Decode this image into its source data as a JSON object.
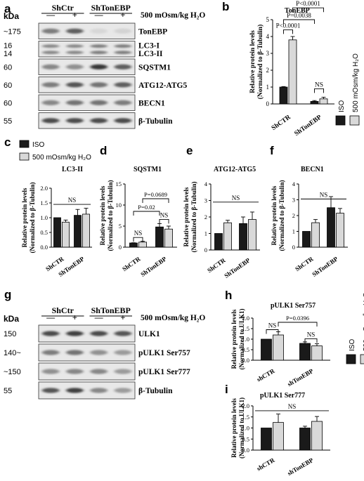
{
  "panels": [
    {
      "id": "a",
      "letter": "a"
    },
    {
      "id": "b",
      "letter": "b"
    },
    {
      "id": "c",
      "letter": "c"
    },
    {
      "id": "d",
      "letter": "d"
    },
    {
      "id": "e",
      "letter": "e"
    },
    {
      "id": "f",
      "letter": "f"
    },
    {
      "id": "g",
      "letter": "g"
    },
    {
      "id": "h",
      "letter": "h"
    },
    {
      "id": "i",
      "letter": "i"
    }
  ],
  "legend": {
    "iso": "ISO",
    "hyper": "500 mOsm/kg H₂O",
    "colors": {
      "iso": "#1a1a1a",
      "hyper": "#d9d9d9"
    }
  },
  "blots": [
    {
      "id": "a",
      "kda_label": "kDa",
      "groups": [
        "ShCtr",
        "ShTonEBP"
      ],
      "lane_signs": [
        "—",
        "+",
        "—",
        "+"
      ],
      "treatment_label": "500 mOsm/kg H₂O",
      "rows": [
        {
          "marker": "~175",
          "labels": [
            "TonEBP"
          ],
          "intensity": [
            0.55,
            0.7,
            0.1,
            0.12
          ],
          "bands": 1
        },
        {
          "marker": "16",
          "marker2": "14",
          "labels": [
            "LC3-I",
            "LC3-II"
          ],
          "intensity": [
            0.5,
            0.5,
            0.55,
            0.55
          ],
          "bands": 2
        },
        {
          "marker": "60",
          "labels": [
            "SQSTM1"
          ],
          "intensity": [
            0.5,
            0.45,
            0.9,
            0.7
          ],
          "bands": 1
        },
        {
          "marker": "60",
          "labels": [
            "ATG12-ATG5"
          ],
          "intensity": [
            0.55,
            0.75,
            0.6,
            0.7
          ],
          "bands": 1
        },
        {
          "marker": "60",
          "labels": [
            "BECN1"
          ],
          "intensity": [
            0.5,
            0.6,
            0.6,
            0.55
          ],
          "bands": 1
        },
        {
          "marker": "55",
          "labels": [
            "β-Tubulin"
          ],
          "intensity": [
            0.8,
            0.8,
            0.8,
            0.8
          ],
          "bands": 1
        }
      ]
    },
    {
      "id": "g",
      "kda_label": "kDa",
      "groups": [
        "ShCtr",
        "ShTonEBP"
      ],
      "lane_signs": [
        "—",
        "+",
        "—",
        "+"
      ],
      "treatment_label": "500 mOsm/kg H₂O",
      "rows": [
        {
          "marker": "150",
          "labels": [
            "ULK1"
          ],
          "intensity": [
            0.8,
            0.85,
            0.8,
            0.75
          ],
          "bands": 1
        },
        {
          "marker": "140~",
          "labels": [
            "pULK1 Ser757"
          ],
          "intensity": [
            0.55,
            0.6,
            0.45,
            0.4
          ],
          "bands": 1
        },
        {
          "marker": "~150",
          "labels": [
            "pULK1 Ser777"
          ],
          "intensity": [
            0.45,
            0.5,
            0.5,
            0.4
          ],
          "bands": 1
        },
        {
          "marker": "55",
          "labels": [
            "β-Tubulin"
          ],
          "intensity": [
            0.75,
            0.85,
            0.5,
            0.4
          ],
          "bands": 1
        }
      ]
    }
  ],
  "chart_data": [
    {
      "id": "b",
      "type": "bar",
      "title": "TonEBP",
      "ylabel": [
        "Relative protein levels",
        "(Normalized to β-Tubulin)"
      ],
      "categories": [
        "ShCTR",
        "ShTonEBP"
      ],
      "series": [
        {
          "name": "ISO",
          "values": [
            1.0,
            0.15
          ],
          "errors": [
            0.03,
            0.05
          ]
        },
        {
          "name": "500 mOsm/kg H₂O",
          "values": [
            3.8,
            0.3
          ],
          "errors": [
            0.2,
            0.1
          ]
        }
      ],
      "ylim": [
        0,
        5
      ],
      "yticks": [
        0,
        1,
        2,
        3,
        4,
        5
      ],
      "grid": false,
      "annotations": [
        {
          "text": "P<0.0001",
          "from": [
            0,
            0
          ],
          "to": [
            0,
            1
          ],
          "y": 4.4
        },
        {
          "text": "P=0.0038",
          "from": [
            0,
            0
          ],
          "to": [
            1,
            0
          ],
          "y": 5.0
        },
        {
          "text": "P<0.0001",
          "from": [
            0,
            1
          ],
          "to": [
            1,
            1
          ],
          "y": 5.7
        },
        {
          "text": "NS",
          "from": [
            1,
            0
          ],
          "to": [
            1,
            1
          ],
          "y": 0.9
        }
      ]
    },
    {
      "id": "c",
      "type": "bar",
      "title": "LC3-II",
      "ylabel": [
        "Relative protein levels",
        "(Normalized to β-Tubulin)"
      ],
      "categories": [
        "ShCTR",
        "ShTonEBP"
      ],
      "series": [
        {
          "name": "ISO",
          "values": [
            1.0,
            1.08
          ],
          "errors": [
            0.0,
            0.2
          ]
        },
        {
          "name": "500 mOsm/kg H₂O",
          "values": [
            0.85,
            1.12
          ],
          "errors": [
            0.07,
            0.2
          ]
        }
      ],
      "ylim": [
        0,
        2.0
      ],
      "yticks": [
        0.0,
        0.5,
        1.0,
        1.5,
        2.0
      ],
      "grid": false,
      "annotations": [
        {
          "text": "NS",
          "from": [
            0,
            0
          ],
          "to": [
            1,
            1
          ],
          "y": 1.45
        }
      ]
    },
    {
      "id": "d",
      "type": "bar",
      "title": "SQSTM1",
      "ylabel": [
        "Relative protein levels",
        "(Normalized to β-Tubulin)"
      ],
      "categories": [
        "ShCTR",
        "ShTonEBP"
      ],
      "series": [
        {
          "name": "ISO",
          "values": [
            1.0,
            4.8
          ],
          "errors": [
            0.05,
            0.8
          ]
        },
        {
          "name": "500 mOsm/kg H₂O",
          "values": [
            1.2,
            4.3
          ],
          "errors": [
            0.2,
            0.7
          ]
        }
      ],
      "ylim": [
        0,
        15
      ],
      "yticks": [
        0,
        5,
        10,
        15
      ],
      "grid": false,
      "annotations": [
        {
          "text": "NS",
          "from": [
            0,
            0
          ],
          "to": [
            0,
            1
          ],
          "y": 2.3
        },
        {
          "text": "NS",
          "from": [
            1,
            0
          ],
          "to": [
            1,
            1
          ],
          "y": 6.6
        },
        {
          "text": "P=0.02",
          "from": [
            0,
            0
          ],
          "to": [
            1,
            0
          ],
          "y": 8.5
        },
        {
          "text": "P=0.0689",
          "from": [
            0,
            1
          ],
          "to": [
            1,
            1
          ],
          "y": 11.5
        }
      ]
    },
    {
      "id": "e",
      "type": "bar",
      "title": "ATG12-ATG5",
      "ylabel": [
        "Relative protein levels",
        "(Normalized to β-Tubulin)"
      ],
      "categories": [
        "ShCTR",
        "ShTonEBP"
      ],
      "series": [
        {
          "name": "ISO",
          "values": [
            1.0,
            1.6
          ],
          "errors": [
            0.0,
            0.4
          ]
        },
        {
          "name": "500 mOsm/kg H₂O",
          "values": [
            1.65,
            1.85
          ],
          "errors": [
            0.15,
            0.45
          ]
        }
      ],
      "ylim": [
        0,
        4
      ],
      "yticks": [
        0,
        1,
        2,
        3,
        4
      ],
      "grid": false,
      "annotations": [
        {
          "text": "NS",
          "from": [
            0,
            0
          ],
          "to": [
            1,
            1
          ],
          "y": 2.9
        }
      ]
    },
    {
      "id": "f",
      "type": "bar",
      "title": "BECN1",
      "ylabel": [
        "Relative protein levels",
        "(Normalized to β-Tubulin)"
      ],
      "categories": [
        "ShCTR",
        "ShTonEBP"
      ],
      "series": [
        {
          "name": "ISO",
          "values": [
            1.0,
            2.5
          ],
          "errors": [
            0.0,
            0.7
          ]
        },
        {
          "name": "500 mOsm/kg H₂O",
          "values": [
            1.55,
            2.15
          ],
          "errors": [
            0.2,
            0.3
          ]
        }
      ],
      "ylim": [
        0,
        4
      ],
      "yticks": [
        0,
        1,
        2,
        3,
        4
      ],
      "grid": false,
      "annotations": [
        {
          "text": "NS",
          "from": [
            0,
            0
          ],
          "to": [
            1,
            1
          ],
          "y": 3.05
        }
      ]
    },
    {
      "id": "h",
      "type": "bar",
      "title": "pULK1 Ser757",
      "ylabel": [
        "Relative protein levels",
        "(Normalized to ULK1)"
      ],
      "categories": [
        "shCTR",
        "shTonEBP"
      ],
      "series": [
        {
          "name": "ISO",
          "values": [
            1.0,
            0.8
          ],
          "errors": [
            0.0,
            0.07
          ]
        },
        {
          "name": "500 mOsm/kg H₂O",
          "values": [
            1.2,
            0.68
          ],
          "errors": [
            0.15,
            0.1
          ]
        }
      ],
      "ylim": [
        0,
        2.0
      ],
      "yticks": [
        0.0,
        0.5,
        1.0,
        1.5,
        2.0
      ],
      "grid": false,
      "annotations": [
        {
          "text": "NS",
          "from": [
            0,
            0
          ],
          "to": [
            0,
            1
          ],
          "y": 1.45
        },
        {
          "text": "NS",
          "from": [
            1,
            0
          ],
          "to": [
            1,
            1
          ],
          "y": 1.02
        },
        {
          "text": "P=0.0396",
          "from": [
            0,
            1
          ],
          "to": [
            1,
            1
          ],
          "y": 1.8
        }
      ]
    },
    {
      "id": "i",
      "type": "bar",
      "title": "pULK1 Ser777",
      "ylabel": [
        "Relative protein levels",
        "(Normalized to ULK1)"
      ],
      "categories": [
        "shCTR",
        "shTonEBP"
      ],
      "series": [
        {
          "name": "ISO",
          "values": [
            1.0,
            1.0
          ],
          "errors": [
            0.0,
            0.08
          ]
        },
        {
          "name": "500 mOsm/kg H₂O",
          "values": [
            1.25,
            1.3
          ],
          "errors": [
            0.38,
            0.22
          ]
        }
      ],
      "ylim": [
        0,
        2.0
      ],
      "yticks": [
        0.0,
        0.5,
        1.0,
        1.5,
        2.0
      ],
      "grid": false,
      "annotations": [
        {
          "text": "NS",
          "from": [
            0,
            0
          ],
          "to": [
            1,
            1
          ],
          "y": 1.78
        }
      ]
    }
  ]
}
